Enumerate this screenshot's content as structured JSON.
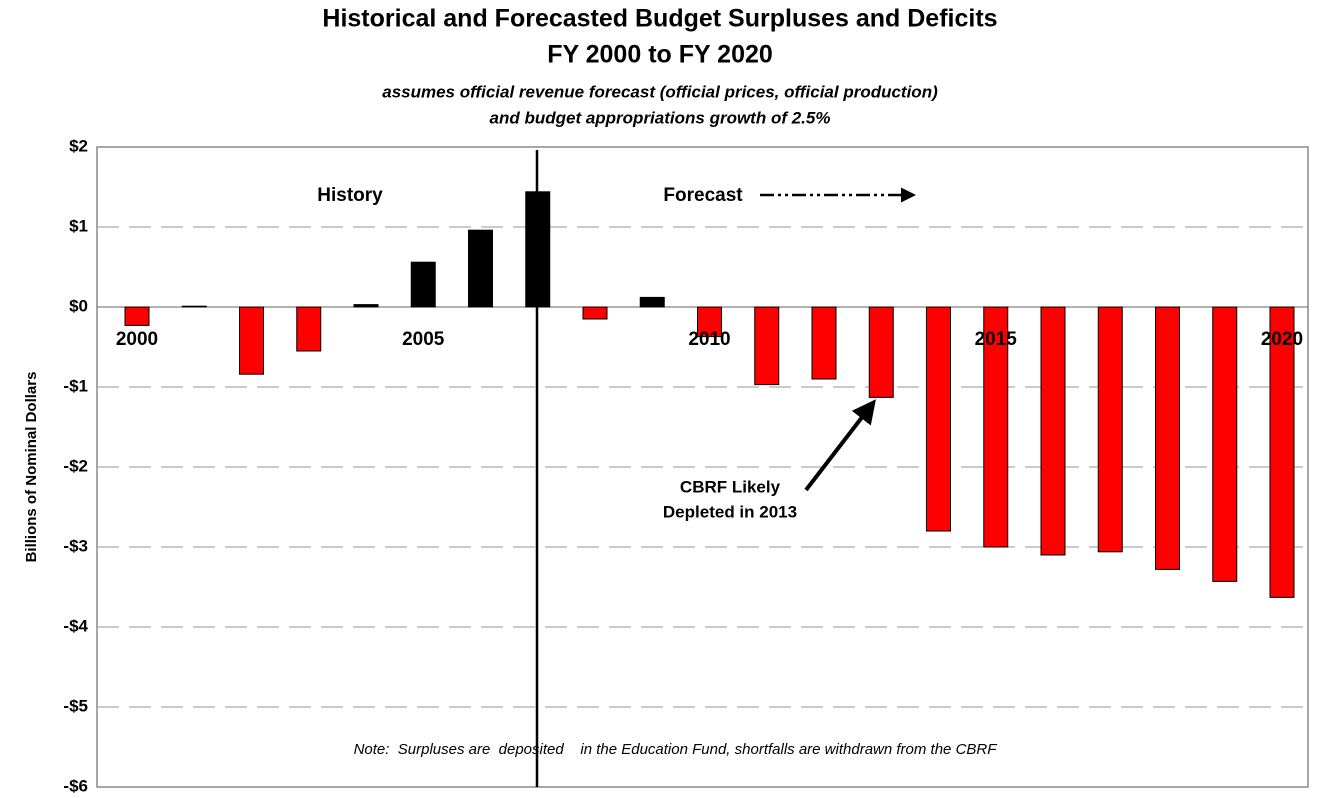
{
  "chart_data": {
    "type": "bar",
    "title": [
      "Historical and Forecasted Budget Surpluses and Deficits",
      "FY 2000 to FY 2020"
    ],
    "subtitle": [
      "assumes official revenue forecast (official prices, official production)",
      "and budget appropriations growth of 2.5%"
    ],
    "y_label": "Billions of Nominal Dollars",
    "categories": [
      "2000",
      null,
      null,
      null,
      null,
      "2005",
      null,
      null,
      null,
      null,
      "2010",
      null,
      null,
      null,
      null,
      "2015",
      null,
      null,
      null,
      null,
      "2020"
    ],
    "values": [
      -0.23,
      0.01,
      -0.84,
      -0.55,
      0.03,
      0.56,
      0.96,
      1.44,
      -0.15,
      0.12,
      -0.37,
      -0.97,
      -0.9,
      -1.13,
      -2.8,
      -3.0,
      -3.1,
      -3.06,
      -3.28,
      -3.43,
      -3.63
    ],
    "color_positive": "#000000",
    "color_negative": "#ff0000",
    "ylim": [
      -6,
      2
    ],
    "yticks": [
      {
        "value": -6,
        "label": "-$6"
      },
      {
        "value": -5,
        "label": "-$5"
      },
      {
        "value": -4,
        "label": "-$4"
      },
      {
        "value": -3,
        "label": "-$3"
      },
      {
        "value": -2,
        "label": "-$2"
      },
      {
        "value": -1,
        "label": "-$1"
      },
      {
        "value": 0,
        "label": "$0"
      },
      {
        "value": 1,
        "label": "$1"
      },
      {
        "value": 2,
        "label": "$2"
      }
    ],
    "grid": true,
    "annotations": {
      "history": "History",
      "forecast": "Forecast",
      "cbrf": [
        "CBRF Likely",
        "Depleted in 2013"
      ],
      "note": "Note:  Surpluses are  deposited    in the Education Fund, shortfalls are withdrawn from the CBRF"
    }
  }
}
